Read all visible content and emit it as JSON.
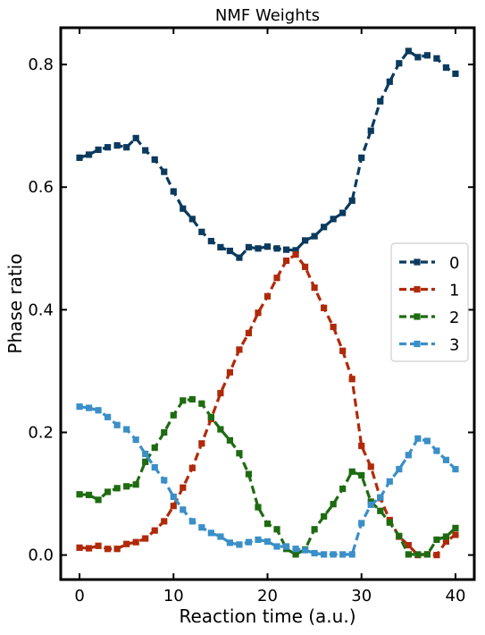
{
  "chart_data": {
    "type": "line",
    "title": "NMF Weights",
    "xlabel": "Reaction time (a.u.)",
    "ylabel": "Phase ratio",
    "xlim": [
      -2,
      42
    ],
    "ylim": [
      -0.04,
      0.86
    ],
    "xticks": [
      0,
      10,
      20,
      30,
      40
    ],
    "yticks": [
      0.0,
      0.2,
      0.4,
      0.6,
      0.8
    ],
    "xtick_labels": [
      "0",
      "10",
      "20",
      "30",
      "40"
    ],
    "ytick_labels": [
      "0.0",
      "0.2",
      "0.4",
      "0.6",
      "0.8"
    ],
    "grid": false,
    "legend_position": "center-right",
    "x": [
      0,
      1,
      2,
      3,
      4,
      5,
      6,
      7,
      8,
      9,
      10,
      11,
      12,
      13,
      14,
      15,
      16,
      17,
      18,
      19,
      20,
      21,
      22,
      23,
      24,
      25,
      26,
      27,
      28,
      29,
      30,
      31,
      32,
      33,
      34,
      35,
      36,
      37,
      38,
      39,
      40
    ],
    "series": [
      {
        "name": "0",
        "color": "#0b3a5e",
        "values": [
          0.648,
          0.653,
          0.661,
          0.665,
          0.668,
          0.665,
          0.68,
          0.66,
          0.645,
          0.625,
          0.593,
          0.565,
          0.548,
          0.527,
          0.512,
          0.502,
          0.496,
          0.485,
          0.502,
          0.5,
          0.503,
          0.5,
          0.498,
          0.497,
          0.513,
          0.52,
          0.535,
          0.548,
          0.558,
          0.578,
          0.648,
          0.692,
          0.74,
          0.772,
          0.802,
          0.822,
          0.812,
          0.815,
          0.81,
          0.795,
          0.785
        ]
      },
      {
        "name": "1",
        "color": "#b02a0a",
        "values": [
          0.012,
          0.011,
          0.015,
          0.01,
          0.01,
          0.018,
          0.021,
          0.027,
          0.04,
          0.055,
          0.08,
          0.11,
          0.142,
          0.182,
          0.222,
          0.264,
          0.298,
          0.335,
          0.362,
          0.395,
          0.422,
          0.452,
          0.48,
          0.49,
          0.47,
          0.436,
          0.403,
          0.372,
          0.333,
          0.287,
          0.178,
          0.144,
          0.093,
          0.057,
          0.03,
          0.016,
          0.0,
          0.001,
          0.0,
          0.022,
          0.033
        ]
      },
      {
        "name": "2",
        "color": "#1e6b12",
        "values": [
          0.099,
          0.098,
          0.09,
          0.103,
          0.109,
          0.112,
          0.115,
          0.152,
          0.175,
          0.2,
          0.228,
          0.252,
          0.254,
          0.247,
          0.225,
          0.205,
          0.187,
          0.166,
          0.132,
          0.078,
          0.051,
          0.042,
          0.01,
          0.001,
          0.009,
          0.042,
          0.063,
          0.083,
          0.108,
          0.136,
          0.13,
          0.087,
          0.072,
          0.053,
          0.031,
          0.001,
          0.001,
          0.001,
          0.025,
          0.03,
          0.044
        ]
      },
      {
        "name": "3",
        "color": "#3a8fc8",
        "values": [
          0.242,
          0.24,
          0.236,
          0.225,
          0.212,
          0.205,
          0.188,
          0.165,
          0.143,
          0.122,
          0.095,
          0.074,
          0.055,
          0.045,
          0.036,
          0.03,
          0.02,
          0.017,
          0.021,
          0.025,
          0.022,
          0.014,
          0.014,
          0.01,
          0.008,
          0.003,
          0.001,
          0.001,
          0.001,
          0.001,
          0.052,
          0.082,
          0.094,
          0.12,
          0.14,
          0.163,
          0.19,
          0.186,
          0.17,
          0.155,
          0.14
        ]
      }
    ]
  }
}
